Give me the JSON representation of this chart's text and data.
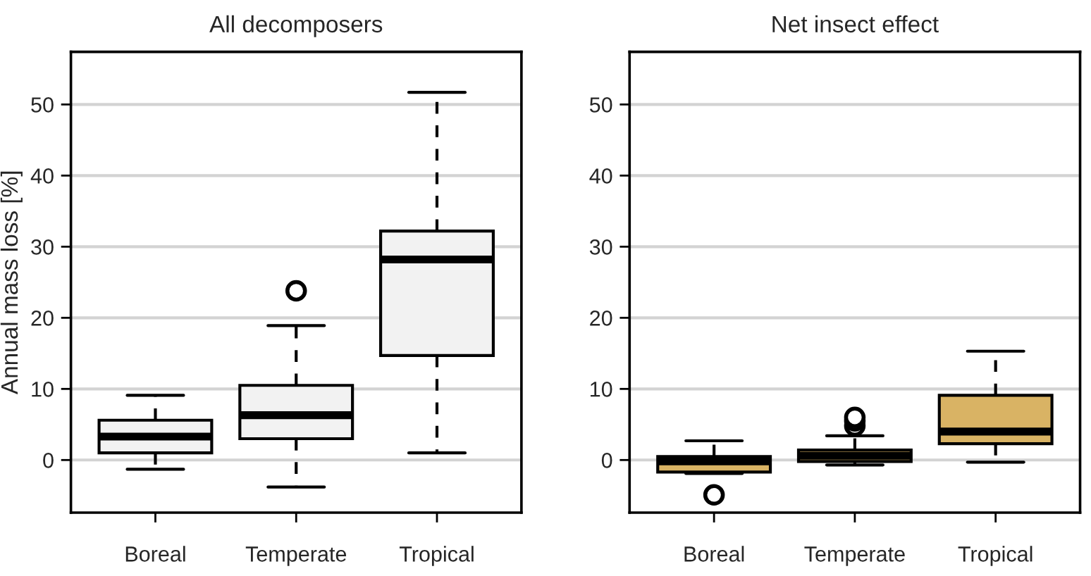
{
  "chart_data": [
    {
      "type": "box",
      "title": "All decomposers",
      "ylabel": "Annual mass loss [%]",
      "categories": [
        "Boreal",
        "Temperate",
        "Tropical"
      ],
      "ylim": [
        -7.4,
        57.4
      ],
      "yticks": [
        0,
        10,
        20,
        30,
        40,
        50
      ],
      "grid": "y",
      "line_style": "dashed",
      "series": [
        {
          "color": "#f2f2f2",
          "boxes": [
            {
              "low": -1.3,
              "q1": 1.0,
              "median": 3.3,
              "q3": 5.6,
              "high": 9.1
            },
            {
              "low": -3.8,
              "q1": 3.0,
              "median": 6.3,
              "q3": 10.5,
              "high": 18.9,
              "outliers": [
                23.8
              ]
            },
            {
              "low": 1.0,
              "q1": 14.7,
              "median": 28.2,
              "q3": 32.2,
              "high": 51.7
            }
          ]
        }
      ]
    },
    {
      "type": "box",
      "title": "Net insect effect",
      "categories": [
        "Boreal",
        "Temperate",
        "Tropical"
      ],
      "ylim": [
        -7.4,
        57.4
      ],
      "yticks": [
        0,
        10,
        20,
        30,
        40,
        50
      ],
      "grid": "y",
      "line_style": "dashed",
      "series": [
        {
          "color": "#d9b364",
          "boxes": [
            {
              "low": -1.9,
              "q1": -1.7,
              "median": -0.2,
              "q3": 0.5,
              "high": 2.7,
              "outliers": [
                -4.9
              ]
            },
            {
              "low": -0.7,
              "q1": -0.2,
              "median": 0.6,
              "q3": 1.4,
              "high": 3.4,
              "outliers": [
                4.8,
                5.5,
                6.0
              ]
            },
            {
              "low": -0.3,
              "q1": 2.3,
              "median": 4.0,
              "q3": 9.1,
              "high": 15.3
            }
          ]
        }
      ]
    }
  ]
}
